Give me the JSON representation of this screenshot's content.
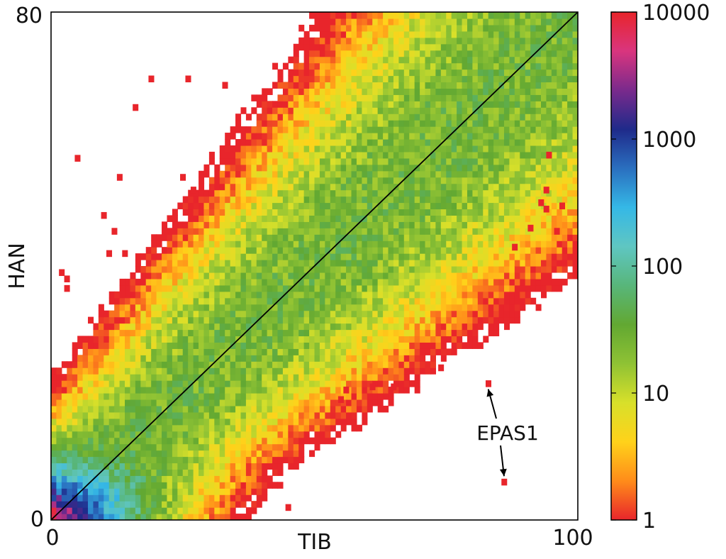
{
  "chart_data": {
    "type": "heatmap",
    "subtype": "2D histogram (log color scale)",
    "title": "",
    "xlabel": "TIB",
    "ylabel": "HAN",
    "xlim": [
      0,
      100
    ],
    "ylim": [
      0,
      80
    ],
    "x_ticks": [
      "0",
      "100"
    ],
    "y_ticks": [
      "0",
      "80"
    ],
    "bins": {
      "nx": 100,
      "ny": 80
    },
    "diagonal_line": {
      "from": [
        0,
        0
      ],
      "to": [
        100,
        80
      ],
      "color": "#000000"
    },
    "distribution": {
      "description": "Counts concentrated along the diagonal, highest near the origin",
      "core_peak_count": 10000,
      "band_center_count": 20,
      "edge_count": 1
    },
    "colorbar": {
      "scale": "log",
      "min": 1,
      "max": 10000,
      "tick_values": [
        1,
        10,
        100,
        1000,
        10000
      ],
      "tick_labels": [
        "1",
        "10",
        "100",
        "1000",
        "10000"
      ],
      "stops": [
        "#e8252b",
        "#ff8c1a",
        "#ffd21a",
        "#d8e02a",
        "#8fc234",
        "#62a832",
        "#58b67a",
        "#5fc6c2",
        "#35b8e6",
        "#2a6fbf",
        "#1f2a8a",
        "#7a2a8c",
        "#d9357e",
        "#e8252b"
      ]
    },
    "annotations": [
      {
        "label": "EPAS1",
        "points": [
          [
            83,
            21.5
          ],
          [
            86,
            6
          ]
        ],
        "point_color": "#e8252b"
      }
    ],
    "outliers": [
      [
        19,
        69.5
      ],
      [
        26,
        69.5
      ],
      [
        33,
        68.5
      ],
      [
        16,
        65
      ],
      [
        5,
        57
      ],
      [
        13,
        54
      ],
      [
        25,
        54
      ],
      [
        27,
        52
      ],
      [
        10,
        48
      ],
      [
        12,
        45.5
      ],
      [
        11,
        42
      ],
      [
        14,
        42
      ],
      [
        2,
        39
      ],
      [
        3,
        38
      ],
      [
        3,
        36.5
      ],
      [
        94,
        52
      ],
      [
        94.5,
        57.5
      ],
      [
        93,
        50
      ],
      [
        94,
        49
      ],
      [
        91,
        46
      ],
      [
        88,
        43
      ],
      [
        97,
        49.5
      ],
      [
        96,
        45.5
      ],
      [
        74,
        24
      ],
      [
        65,
        21
      ],
      [
        61,
        21
      ],
      [
        56,
        20.5
      ],
      [
        55,
        19
      ],
      [
        45,
        2
      ]
    ]
  }
}
